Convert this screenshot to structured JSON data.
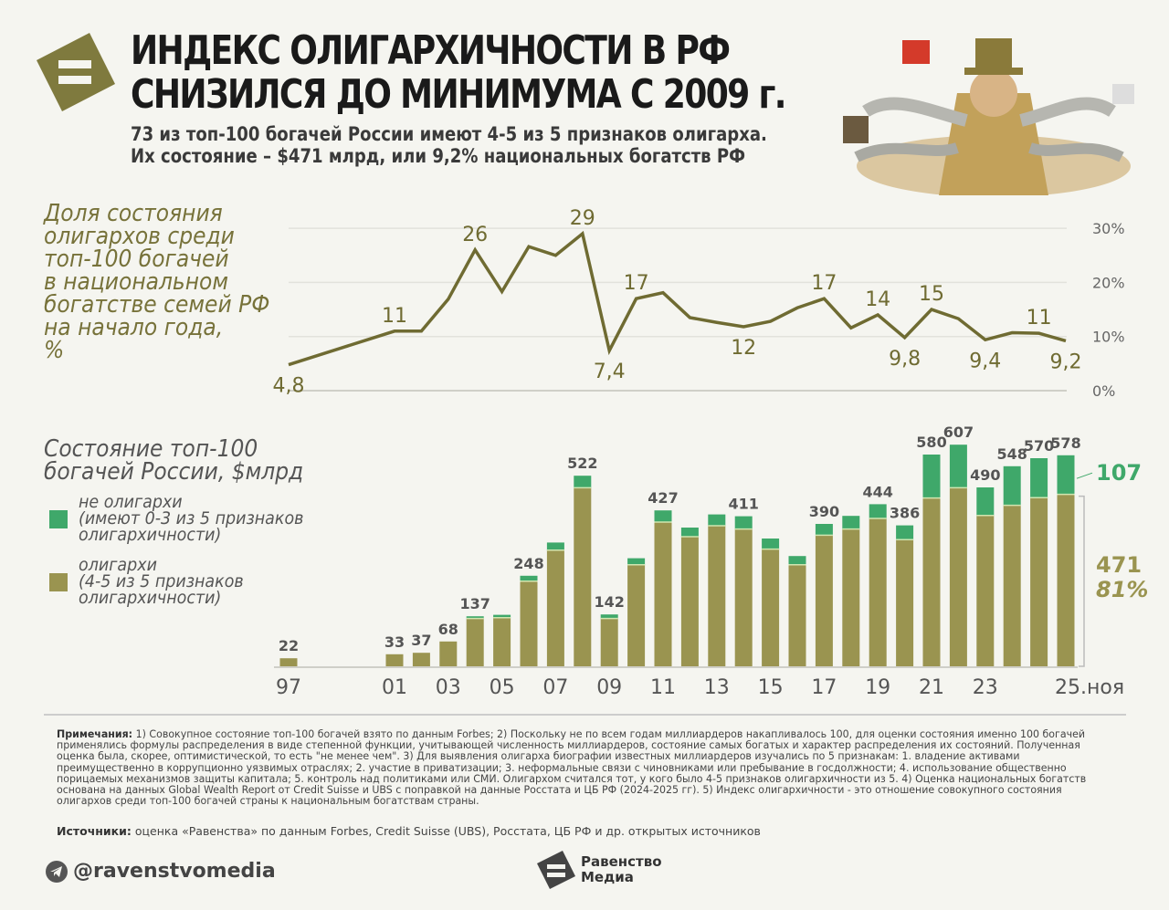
{
  "header": {
    "title_line1": "ИНДЕКС ОЛИГАРХИЧНОСТИ В РФ",
    "title_line2": "СНИЗИЛСЯ ДО МИНИМУМА С 2009 г.",
    "subtitle_line1": "73 из топ-100 богачей России имеют 4-5 из 5 признаков олигарха.",
    "subtitle_line2": "Их состояние – $471 млрд, или 9,2% национальных богатств РФ",
    "logo_icon": "equals-diamond-icon",
    "illustration": "oligarch-cartoon"
  },
  "colors": {
    "olive": "#9a9450",
    "line": "#6f6b32",
    "green": "#3fa86a",
    "text_olive": "#77723a"
  },
  "chart_data": [
    {
      "type": "line",
      "title": "Доля состояния олигархов среди топ-100 богачей в национальном богатстве семей РФ на начало года, %",
      "categories": [
        "1997",
        "2001",
        "2002",
        "2003",
        "2004",
        "2005",
        "2006",
        "2007",
        "2008",
        "2009",
        "2010",
        "2011",
        "2012",
        "2013",
        "2014",
        "2015",
        "2016",
        "2017",
        "2018",
        "2019",
        "2020",
        "2021",
        "2022",
        "2023",
        "2024",
        "2025",
        "25.ноя"
      ],
      "values": [
        4.8,
        11,
        11,
        16.9,
        26,
        18.3,
        26.6,
        25,
        29,
        7.4,
        17,
        18.1,
        13.5,
        12.6,
        11.8,
        12.8,
        15.3,
        17,
        11.6,
        14,
        9.8,
        15,
        13.3,
        9.4,
        10.7,
        10.6,
        9.2
      ],
      "point_labels": [
        {
          "index": 0,
          "text": "4,8",
          "pos": "below"
        },
        {
          "index": 1,
          "text": "11",
          "pos": "above"
        },
        {
          "index": 4,
          "text": "26",
          "pos": "above"
        },
        {
          "index": 8,
          "text": "29",
          "pos": "above"
        },
        {
          "index": 9,
          "text": "7,4",
          "pos": "below"
        },
        {
          "index": 10,
          "text": "17",
          "pos": "above"
        },
        {
          "index": 14,
          "text": "12",
          "pos": "below"
        },
        {
          "index": 17,
          "text": "17",
          "pos": "above"
        },
        {
          "index": 19,
          "text": "14",
          "pos": "above"
        },
        {
          "index": 20,
          "text": "9,8",
          "pos": "below"
        },
        {
          "index": 21,
          "text": "15",
          "pos": "above"
        },
        {
          "index": 23,
          "text": "9,4",
          "pos": "below"
        },
        {
          "index": 25,
          "text": "11",
          "pos": "above"
        },
        {
          "index": 26,
          "text": "9,2",
          "pos": "below"
        }
      ],
      "ylim": [
        0,
        30
      ],
      "yticks": [
        "0%",
        "10%",
        "20%",
        "30%"
      ],
      "grid": true
    },
    {
      "type": "bar",
      "stacked": true,
      "title": "Состояние топ-100 богачей России, $млрд",
      "categories": [
        "1997",
        "2001",
        "2002",
        "2003",
        "2004",
        "2005",
        "2006",
        "2007",
        "2008",
        "2009",
        "2010",
        "2011",
        "2012",
        "2013",
        "2014",
        "2015",
        "2016",
        "2017",
        "2018",
        "2019",
        "2020",
        "2021",
        "2022",
        "2023",
        "2024",
        "2025",
        "25.ноя"
      ],
      "series": [
        {
          "name": "олигархи",
          "description": "(4-5 из 5 признаков олигархичности)",
          "values": [
            22,
            33,
            37,
            68,
            131,
            133,
            233,
            318,
            489,
            131,
            278,
            395,
            355,
            385,
            376,
            321,
            278,
            359,
            376,
            405,
            347,
            461,
            489,
            413,
            441,
            462,
            471
          ]
        },
        {
          "name": "не олигархи",
          "description": "(имеют 0-3 из 5 признаков олигархичности)",
          "values": [
            0,
            0,
            0,
            0,
            6,
            8,
            15,
            21,
            33,
            11,
            18,
            32,
            25,
            31,
            35,
            29,
            24,
            31,
            36,
            39,
            39,
            119,
            118,
            77,
            107,
            108,
            107
          ]
        }
      ],
      "total_labels": [
        "22",
        "33",
        "37",
        "68",
        "137",
        null,
        "248",
        null,
        "522",
        "142",
        null,
        "427",
        null,
        null,
        "411",
        null,
        null,
        "390",
        null,
        "444",
        "386",
        "580",
        "607",
        "490",
        "548",
        "570",
        "578"
      ],
      "xticks": [
        {
          "index": 0,
          "label": "97"
        },
        {
          "index": 1,
          "label": "01"
        },
        {
          "index": 3,
          "label": "03"
        },
        {
          "index": 5,
          "label": "05"
        },
        {
          "index": 7,
          "label": "07"
        },
        {
          "index": 9,
          "label": "09"
        },
        {
          "index": 11,
          "label": "11"
        },
        {
          "index": 13,
          "label": "13"
        },
        {
          "index": 15,
          "label": "15"
        },
        {
          "index": 17,
          "label": "17"
        },
        {
          "index": 19,
          "label": "19"
        },
        {
          "index": 21,
          "label": "21"
        },
        {
          "index": 23,
          "label": "23"
        },
        {
          "index": 26,
          "label": "25.ноя"
        }
      ],
      "annotations": {
        "green_last": "107",
        "olive_last": "471",
        "olive_share": "81%"
      }
    }
  ],
  "legend": {
    "non_oligarchs_line1": "не олигархи",
    "non_oligarchs_line2": "(имеют 0-3 из 5 признаков",
    "non_oligarchs_line3": "олигархичности)",
    "oligarchs_line1": "олигархи",
    "oligarchs_line2": "(4-5 из 5 признаков",
    "oligarchs_line3": "олигархичности)"
  },
  "line_title_lines": [
    "Доля состояния",
    "олигархов среди",
    "топ-100 богачей",
    "в национальном",
    "богатстве семей РФ",
    "на начало года,",
    "%"
  ],
  "bar_title_lines": [
    "Состояние топ-100",
    "богачей России, $млрд"
  ],
  "notes": {
    "label": "Примечания:",
    "text": " 1) Совокупное состояние топ-100 богачей взято по данным Forbes; 2) Поскольку не по всем годам миллиардеров накапливалось 100, для оценки состояния именно 100 богачей применялись формулы распределения в виде степенной функции, учитывающей численность миллиардеров, состояние самых богатых и характер распределения их состояний. Полученная оценка была, скорее, оптимистической, то есть \"не менее чем\". 3) Для выявления олигарха биографии известных миллиардеров изучались по 5 признакам: 1. владение активами преимущественно в коррупционно уязвимых отраслях; 2. участие в приватизации; 3. неформальные связи с чиновниками или пребывание в госдолжности; 4. использование общественно порицаемых механизмов защиты капитала; 5. контроль над политиками или СМИ. Олигархом считался тот, у кого было 4-5 признаков олигархичности из 5. 4) Оценка национальных богатств основана на данных Global Wealth Report от Credit Suisse и UBS с поправкой на данные Росстата и ЦБ РФ (2024-2025 гг). 5) Индекс олигархичности - это отношение совокупного состояния олигархов среди топ-100 богачей страны к национальным богатствам страны."
  },
  "sources": {
    "label": "Источники:",
    "text": " оценка «Равенства» по данным Forbes, Credit Suisse (UBS), Росстата, ЦБ РФ и др. открытых источников"
  },
  "footer": {
    "telegram_handle": "@ravenstvomedia",
    "brand_line1": "Равенство",
    "brand_line2": "Медиа"
  }
}
